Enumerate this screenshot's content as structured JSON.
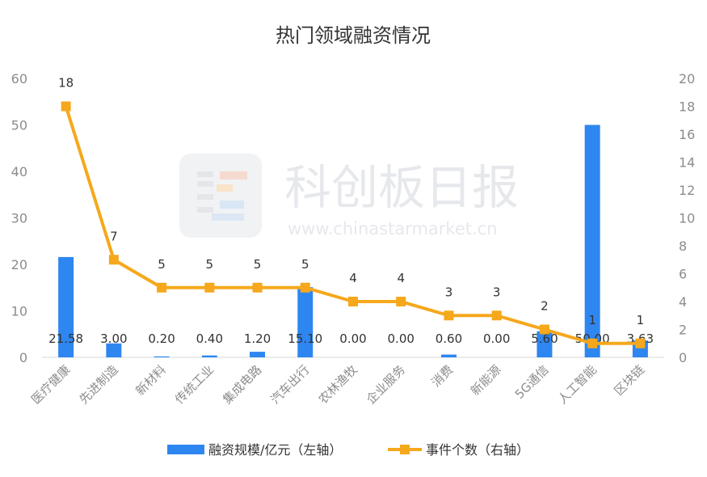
{
  "watermark": {
    "brand": "科创板日报",
    "url": "www.chinastarmarket.cn"
  },
  "chart_data": {
    "type": "bar+line",
    "title": "热门领域融资情况",
    "categories": [
      "医疗健康",
      "先进制造",
      "新材料",
      "传统工业",
      "集成电路",
      "汽车出行",
      "农林渔牧",
      "企业服务",
      "消费",
      "新能源",
      "5G通信",
      "人工智能",
      "区块链"
    ],
    "series": [
      {
        "name": "融资规模/亿元（左轴）",
        "type": "bar",
        "axis": "left",
        "color": "#2e86f0",
        "values": [
          21.58,
          3.0,
          0.2,
          0.4,
          1.2,
          15.1,
          0.0,
          0.0,
          0.6,
          0.0,
          5.6,
          50.0,
          3.63
        ],
        "labels": [
          "21.58",
          "3.00",
          "0.20",
          "0.40",
          "1.20",
          "15.10",
          "0.00",
          "0.00",
          "0.60",
          "0.00",
          "5.60",
          "50.00",
          "3.63"
        ]
      },
      {
        "name": "事件个数（右轴）",
        "type": "line",
        "axis": "right",
        "color": "#f5a81c",
        "values": [
          18,
          7,
          5,
          5,
          5,
          5,
          4,
          4,
          3,
          3,
          2,
          1,
          1
        ],
        "labels": [
          "18",
          "7",
          "5",
          "5",
          "5",
          "5",
          "4",
          "4",
          "3",
          "3",
          "2",
          "1",
          "1"
        ]
      }
    ],
    "y_left": {
      "min": 0,
      "max": 60,
      "ticks": [
        "0",
        "10",
        "20",
        "30",
        "40",
        "50",
        "60"
      ]
    },
    "y_right": {
      "min": 0,
      "max": 20,
      "ticks": [
        "0",
        "2",
        "4",
        "6",
        "8",
        "10",
        "12",
        "14",
        "16",
        "18",
        "20"
      ]
    },
    "grid": false,
    "legend": "bottom"
  }
}
